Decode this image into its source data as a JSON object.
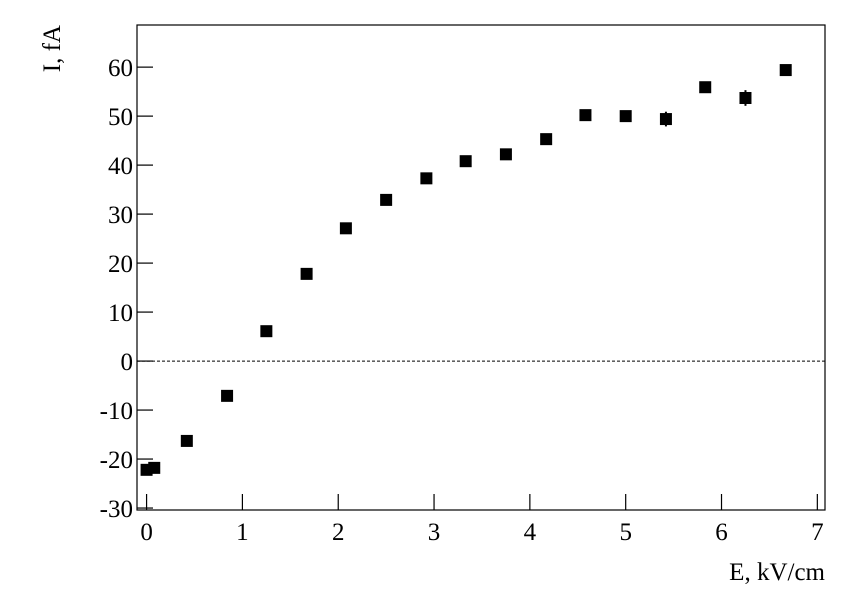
{
  "chart_data": {
    "type": "scatter",
    "x_label": "E, kV/cm",
    "y_label": "I, fA",
    "x": [
      0,
      0.08,
      0.42,
      0.84,
      1.25,
      1.67,
      2.08,
      2.5,
      2.92,
      3.33,
      3.75,
      4.17,
      4.58,
      5.0,
      5.42,
      5.83,
      6.25,
      6.67
    ],
    "values": [
      -22.2,
      -21.8,
      -16.3,
      -7.1,
      6.1,
      17.8,
      27.1,
      32.9,
      37.3,
      40.8,
      42.2,
      45.3,
      50.2,
      50.0,
      49.4,
      55.9,
      53.7,
      59.4
    ],
    "errors": [
      0.4,
      0.4,
      0.4,
      0.4,
      0.4,
      0.4,
      0.4,
      0.4,
      0.4,
      0.4,
      0.4,
      0.4,
      0.5,
      0.5,
      1.5,
      0.6,
      1.6,
      0.5
    ],
    "color": "#000000",
    "xlim": [
      -0.1,
      7.08
    ],
    "ylim": [
      -30.4,
      68.6
    ],
    "xticks": [
      0,
      1,
      2,
      3,
      4,
      5,
      6,
      7
    ],
    "yticks": [
      -30,
      -20,
      -10,
      0,
      10,
      20,
      30,
      40,
      50,
      60
    ],
    "zero_line": true
  }
}
